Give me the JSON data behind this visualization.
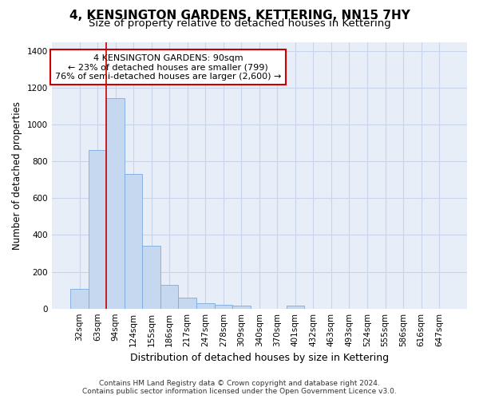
{
  "title": "4, KENSINGTON GARDENS, KETTERING, NN15 7HY",
  "subtitle": "Size of property relative to detached houses in Kettering",
  "xlabel": "Distribution of detached houses by size in Kettering",
  "ylabel": "Number of detached properties",
  "categories": [
    "32sqm",
    "63sqm",
    "94sqm",
    "124sqm",
    "155sqm",
    "186sqm",
    "217sqm",
    "247sqm",
    "278sqm",
    "309sqm",
    "340sqm",
    "370sqm",
    "401sqm",
    "432sqm",
    "463sqm",
    "493sqm",
    "524sqm",
    "555sqm",
    "586sqm",
    "616sqm",
    "647sqm"
  ],
  "values": [
    105,
    860,
    1145,
    730,
    340,
    130,
    60,
    30,
    22,
    15,
    0,
    0,
    15,
    0,
    0,
    0,
    0,
    0,
    0,
    0,
    0
  ],
  "bar_color": "#c5d8f0",
  "bar_edge_color": "#7aabe0",
  "grid_color": "#c8d4e8",
  "background_color": "#e8eef8",
  "property_line_color": "#cc0000",
  "annotation_text": "4 KENSINGTON GARDENS: 90sqm\n← 23% of detached houses are smaller (799)\n76% of semi-detached houses are larger (2,600) →",
  "annotation_box_color": "#ffffff",
  "annotation_box_edge": "#cc0000",
  "ylim": [
    0,
    1450
  ],
  "yticks": [
    0,
    200,
    400,
    600,
    800,
    1000,
    1200,
    1400
  ],
  "footer_line1": "Contains HM Land Registry data © Crown copyright and database right 2024.",
  "footer_line2": "Contains public sector information licensed under the Open Government Licence v3.0.",
  "title_fontsize": 11,
  "subtitle_fontsize": 9.5,
  "xlabel_fontsize": 9,
  "ylabel_fontsize": 8.5,
  "tick_fontsize": 7.5,
  "annotation_fontsize": 8,
  "footer_fontsize": 6.5
}
